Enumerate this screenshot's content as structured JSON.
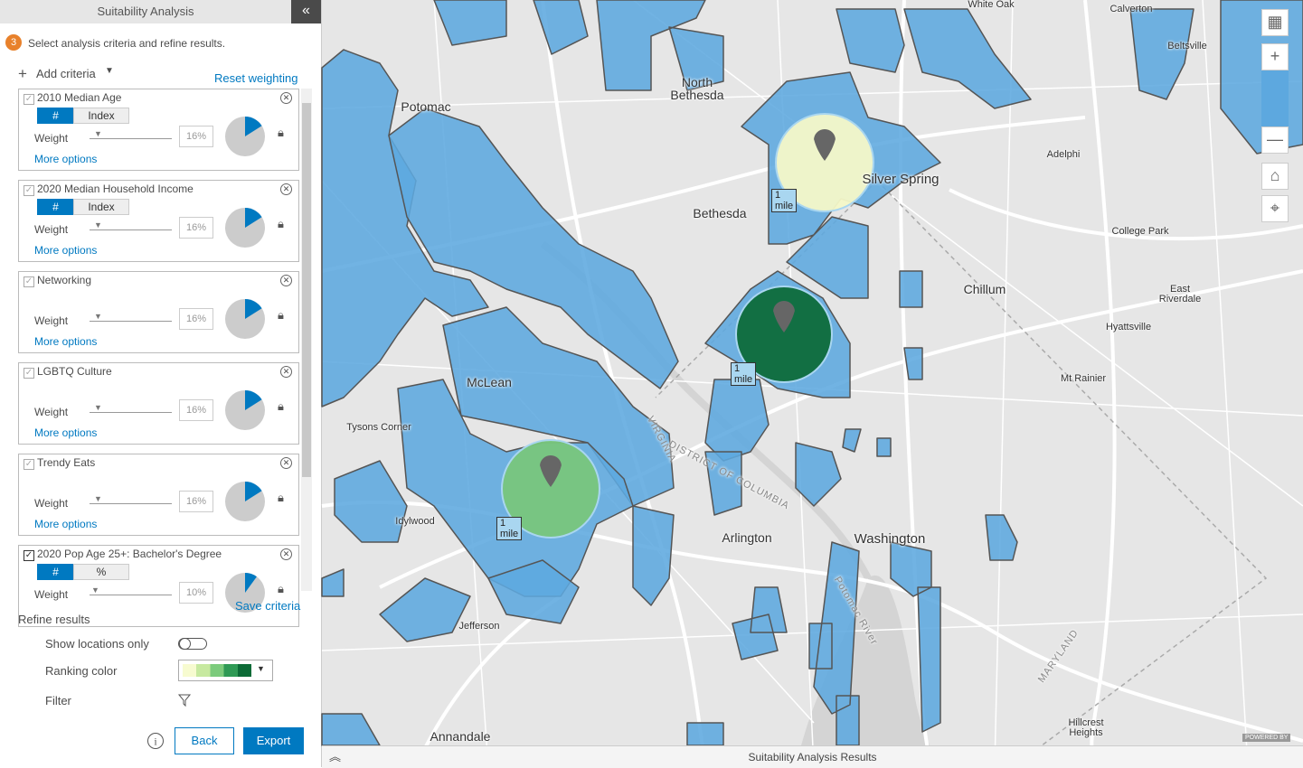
{
  "panel": {
    "title": "Suitability Analysis",
    "step": "3",
    "instruction": "Select analysis criteria and refine results.",
    "add_criteria": "Add criteria",
    "reset_weighting": "Reset weighting",
    "criteria": [
      {
        "name": "2010 Median Age",
        "toggle": [
          "#",
          "Index"
        ],
        "weight_label": "Weight",
        "weight": "16%",
        "more": "More options"
      },
      {
        "name": "2020 Median Household Income",
        "toggle": [
          "#",
          "Index"
        ],
        "weight_label": "Weight",
        "weight": "16%",
        "more": "More options"
      },
      {
        "name": "Networking",
        "weight_label": "Weight",
        "weight": "16%",
        "more": "More options"
      },
      {
        "name": "LGBTQ Culture",
        "weight_label": "Weight",
        "weight": "16%",
        "more": "More options"
      },
      {
        "name": "Trendy Eats",
        "weight_label": "Weight",
        "weight": "16%",
        "more": "More options"
      },
      {
        "name": "2020 Pop Age 25+: Bachelor's Degree",
        "toggle": [
          "#",
          "%"
        ],
        "weight_label": "Weight",
        "weight": "10%"
      }
    ],
    "save_criteria": "Save criteria",
    "refine_title": "Refine results",
    "show_locations": "Show locations only",
    "ranking_color": "Ranking color",
    "filter": "Filter",
    "back": "Back",
    "export": "Export"
  },
  "map": {
    "labels": [
      "White Oak",
      "Calverton",
      "Beltsville",
      "North Bethesda",
      "Potomac",
      "Silver Spring",
      "Adelphi",
      "Bethesda",
      "College Park",
      "Chillum",
      "East Riverdale",
      "Hyattsville",
      "McLean",
      "Mt Rainier",
      "Tysons Corner",
      "Idylwood",
      "Arlington",
      "Washington",
      "Jefferson",
      "Annandale",
      "Hillcrest Heights"
    ],
    "boundary_labels": [
      "VIRGINIA",
      "DISTRICT OF COLUMBIA",
      "Potomac River",
      "MARYLAND"
    ],
    "radius_labels": [
      "1 mile",
      "1 mile",
      "1 mile"
    ],
    "attribution": "POWERED BY"
  },
  "results_bar": "Suitability Analysis Results"
}
